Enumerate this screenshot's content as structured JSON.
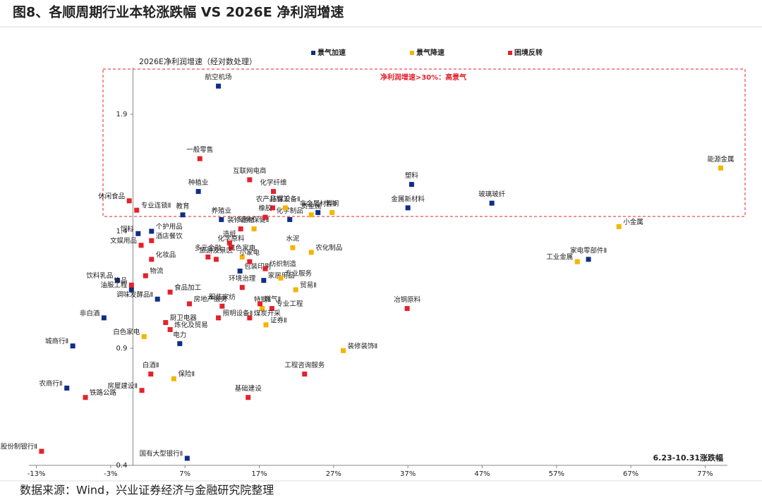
{
  "chart_data": {
    "type": "scatter",
    "title": "图8、各顺周期行业本轮涨跌幅 VS 2026E 净利润增速",
    "y_label": "2026E净利润增速（经对数处理）",
    "x_label": "6.23-10.31涨跌幅",
    "annotation": "净利润增速>30%：高景气",
    "source": "数据来源：Wind，兴业证券经济与金融研究院整理",
    "xlim": [
      -14,
      80
    ],
    "ylim": [
      0.4,
      2.1
    ],
    "xticks": [
      {
        "value": -13,
        "label": "-13%"
      },
      {
        "value": -3,
        "label": "-3%"
      },
      {
        "value": 7,
        "label": "7%"
      },
      {
        "value": 17,
        "label": "17%"
      },
      {
        "value": 27,
        "label": "27%"
      },
      {
        "value": 37,
        "label": "37%"
      },
      {
        "value": 47,
        "label": "47%"
      },
      {
        "value": 57,
        "label": "57%"
      },
      {
        "value": 67,
        "label": "67%"
      },
      {
        "value": 77,
        "label": "77%"
      }
    ],
    "yticks": [
      0.4,
      0.9,
      1.4,
      1.9
    ],
    "series": [
      {
        "name": "景气加速",
        "color": "#0f2e87",
        "labels": [
          "航空机场",
          "种植业",
          "教育",
          "养殖业",
          "饲料",
          "个护用品",
          "塑料",
          "金属新材料",
          "玻璃玻纤",
          "非金属材料Ⅱ",
          "化学制品",
          "家电零部件Ⅱ",
          "包装印刷",
          "家居用品",
          "饮料乳品",
          "油服工程",
          "调味发酵品Ⅱ",
          "非白酒",
          "城商行Ⅱ",
          "电力",
          "农商行Ⅱ",
          "国有大型银行Ⅱ"
        ],
        "x": [
          11.5,
          8.8,
          6.7,
          11.9,
          0.7,
          2.5,
          37.5,
          37.0,
          48.3,
          24.9,
          21.1,
          61.3,
          14.4,
          17.6,
          -2.1,
          -0.2,
          3.3,
          -3.9,
          -8.1,
          6.3,
          -8.9,
          7.3
        ],
        "values": [
          2.02,
          1.57,
          1.47,
          1.45,
          1.39,
          1.4,
          1.6,
          1.5,
          1.52,
          1.48,
          1.45,
          1.28,
          1.23,
          1.19,
          1.19,
          1.15,
          1.11,
          1.03,
          0.91,
          0.92,
          0.73,
          0.43
        ]
      },
      {
        "name": "景气降速",
        "color": "#f5b400",
        "labels": [
          "能源金属",
          "小金属",
          "工业金属",
          "贵金属",
          "普钢",
          "环保设备Ⅱ",
          "动物保健Ⅱ",
          "农化制品",
          "水泥",
          "黑色家电",
          "专业服务",
          "贸易Ⅱ",
          "特钢Ⅱ",
          "证券Ⅱ",
          "装修装饰Ⅱ",
          "白色家电",
          "保险Ⅱ"
        ],
        "x": [
          79.1,
          65.4,
          59.8,
          24.0,
          26.8,
          20.5,
          16.3,
          24.0,
          21.5,
          14.7,
          19.9,
          21.9,
          17.4,
          17.9,
          28.3,
          1.5,
          5.5
        ],
        "values": [
          1.67,
          1.42,
          1.27,
          1.47,
          1.48,
          1.5,
          1.41,
          1.31,
          1.33,
          1.29,
          1.2,
          1.15,
          1.07,
          1.0,
          0.89,
          0.95,
          0.77
        ]
      },
      {
        "name": "困境反转",
        "color": "#e5212b",
        "labels": [
          "一般零售",
          "互联网电商",
          "化学纤维",
          "休闲食品",
          "专业连锁Ⅱ",
          "农产品加工",
          "橡胶",
          "装修建材",
          "酒店餐饮",
          "文娱用品",
          "造纸",
          "化学原料",
          "多元金融",
          "旅游及景区",
          "小家电",
          "化妆品",
          "纺织制造",
          "物流",
          "饰品",
          "食品加工",
          "房地产服务",
          "环境治理",
          "燃气Ⅱ",
          "服装家纺",
          "专业工程",
          "冶钢原料",
          "厨卫电器",
          "炼化及贸易",
          "照明设备Ⅱ",
          "煤炭开采",
          "工程咨询服务",
          "白酒Ⅱ",
          "房屋建设Ⅱ",
          "铁路公路",
          "基础建设",
          "股份制银行Ⅱ"
        ],
        "x": [
          9.0,
          15.7,
          18.9,
          -0.5,
          0.5,
          18.8,
          17.8,
          14.5,
          2.5,
          1.1,
          13.0,
          13.2,
          10.1,
          11.2,
          15.7,
          2.5,
          17.8,
          1.7,
          -0.2,
          5.0,
          7.6,
          14.7,
          17.1,
          12.0,
          18.7,
          36.9,
          4.4,
          5.0,
          11.5,
          15.7,
          23.1,
          2.4,
          1.2,
          -6.4,
          15.5,
          -12.3
        ],
        "values": [
          1.71,
          1.62,
          1.57,
          1.53,
          1.49,
          1.5,
          1.46,
          1.41,
          1.36,
          1.34,
          1.35,
          1.33,
          1.29,
          1.28,
          1.27,
          1.28,
          1.24,
          1.21,
          1.17,
          1.14,
          1.09,
          1.16,
          1.09,
          1.08,
          1.07,
          1.07,
          1.01,
          0.98,
          1.03,
          1.03,
          0.79,
          0.79,
          0.72,
          0.69,
          0.69,
          0.46
        ]
      }
    ]
  }
}
